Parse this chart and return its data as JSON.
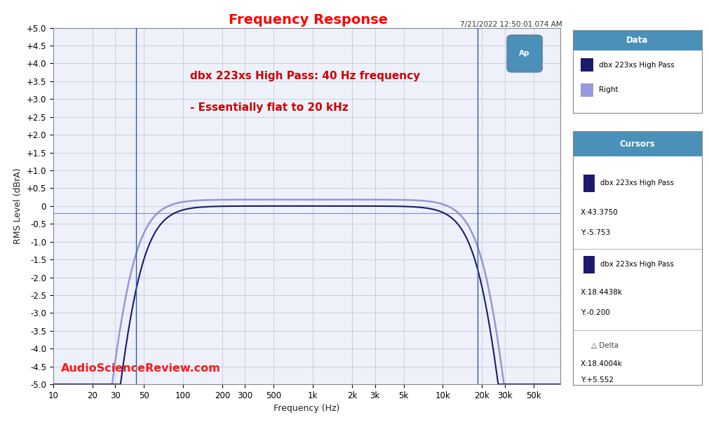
{
  "title": "Frequency Response",
  "title_color": "#ff0000",
  "timestamp": "7/21/2022 12:50:01.074 AM",
  "annotation1": "dbx 223xs High Pass: 40 Hz frequency",
  "annotation2": "- Essentially flat to 20 kHz",
  "annotation_color": "#cc0000",
  "watermark": "AudioScienceReview.com",
  "watermark_color": "#ff0000",
  "xlabel": "Frequency (Hz)",
  "ylabel": "RMS Level (dBrA)",
  "xlim_log": [
    10,
    80000
  ],
  "ylim": [
    -5.0,
    5.0
  ],
  "yticks": [
    -5.0,
    -4.5,
    -4.0,
    -3.5,
    -3.0,
    -2.5,
    -2.0,
    -1.5,
    -1.0,
    -0.5,
    0,
    0.5,
    1.0,
    1.5,
    2.0,
    2.5,
    3.0,
    3.5,
    4.0,
    4.5,
    5.0
  ],
  "ytick_labels": [
    "-5.0",
    "-4.5",
    "-4.0",
    "-3.5",
    "-3.0",
    "-2.5",
    "-2.0",
    "-1.5",
    "-1.0",
    "-0.5",
    "0",
    "+0.5",
    "+1.0",
    "+1.5",
    "+2.0",
    "+2.5",
    "+3.0",
    "+3.5",
    "+4.0",
    "+4.5",
    "+5.0"
  ],
  "xtick_positions": [
    10,
    20,
    30,
    50,
    100,
    200,
    300,
    500,
    1000,
    2000,
    3000,
    5000,
    10000,
    20000,
    30000,
    50000
  ],
  "xtick_labels": [
    "10",
    "20",
    "30",
    "50",
    "100",
    "200",
    "300",
    "500",
    "1k",
    "2k",
    "3k",
    "5k",
    "10k",
    "20k",
    "30k",
    "50k"
  ],
  "bg_color": "#ffffff",
  "plot_bg_color": "#eef1fa",
  "grid_color": "#c8cfe0",
  "cursor_line1_x": 43.375,
  "cursor_line2_x": 18443.8,
  "zero_line_y": -0.2,
  "line1_color": "#1a1a6e",
  "line2_color": "#8888cc",
  "line2_alpha": 0.75,
  "legend_box_color": "#4a90b8",
  "legend_title": "Data",
  "legend_entries": [
    "dbx 223xs High Pass",
    "Right"
  ],
  "legend_colors": [
    "#1a1a6e",
    "#9999dd"
  ],
  "cursor_box_color": "#4a90b8",
  "cursor_title": "Cursors",
  "cursor1_label": "dbx 223xs High Pass",
  "cursor1_x": "X:43.3750",
  "cursor1_y": "Y:-5.753",
  "cursor2_label": "dbx 223xs High Pass",
  "cursor2_x": "X:18.4438k",
  "cursor2_y": "Y:-0.200",
  "delta_label": "△ Delta",
  "delta_x": "X:18.4004k",
  "delta_y": "Y:+5.552",
  "ap_logo_color": "#4a90b8"
}
